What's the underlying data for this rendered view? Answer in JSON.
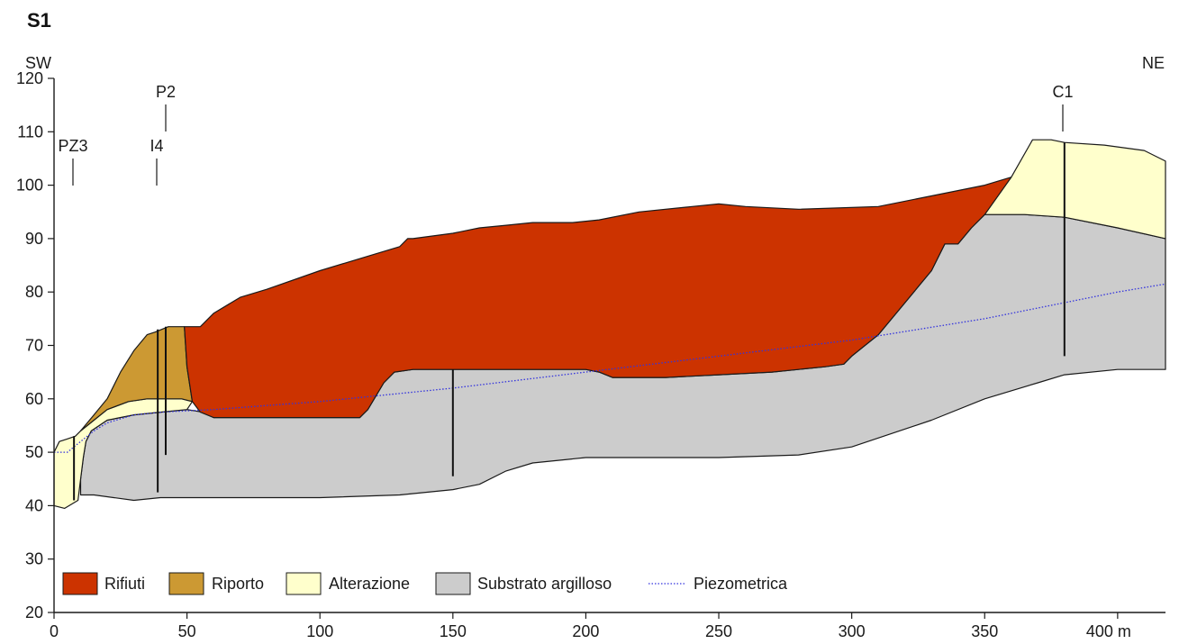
{
  "section": {
    "title": "S1",
    "orientation_left": "SW",
    "orientation_right": "NE"
  },
  "axes": {
    "x_ticks": [
      "0",
      "50",
      "100",
      "150",
      "200",
      "250",
      "300",
      "350",
      "400 m"
    ],
    "x_tick_values": [
      0,
      50,
      100,
      150,
      200,
      250,
      300,
      350,
      400
    ],
    "y_ticks": [
      "20",
      "30",
      "40",
      "50",
      "60",
      "70",
      "80",
      "90",
      "100",
      "110",
      "120"
    ],
    "y_tick_values": [
      20,
      30,
      40,
      50,
      60,
      70,
      80,
      90,
      100,
      110,
      120
    ],
    "xlim": [
      0,
      418
    ],
    "ylim": [
      20,
      120
    ]
  },
  "colors": {
    "rifiuti": "#cc3300",
    "riporto": "#cc9933",
    "alterazione": "#ffffcc",
    "substrato": "#cccccc",
    "piezometrica": "#3333dd"
  },
  "boreholes": [
    {
      "id": "PZ3",
      "label": "PZ3",
      "x": 7.5,
      "top": 53,
      "bottom": 41
    },
    {
      "id": "I4",
      "label": "I4",
      "x": 39,
      "top": 73,
      "bottom": 42.5
    },
    {
      "id": "P2",
      "label": "P2",
      "x": 42,
      "top": 73.5,
      "bottom": 49.5
    },
    {
      "id": "B150",
      "label": "",
      "x": 150,
      "top": 65.5,
      "bottom": 45.5
    },
    {
      "id": "C1",
      "label": "C1",
      "x": 380,
      "top": 108,
      "bottom": 68
    }
  ],
  "layers": {
    "substrato": [
      [
        10,
        42
      ],
      [
        15,
        42
      ],
      [
        30,
        41
      ],
      [
        40,
        41.5
      ],
      [
        60,
        41.5
      ],
      [
        100,
        41.5
      ],
      [
        130,
        42
      ],
      [
        150,
        43
      ],
      [
        160,
        44
      ],
      [
        170,
        46.5
      ],
      [
        180,
        48
      ],
      [
        200,
        49
      ],
      [
        250,
        49
      ],
      [
        280,
        49.5
      ],
      [
        300,
        51
      ],
      [
        330,
        56
      ],
      [
        350,
        60
      ],
      [
        370,
        63
      ],
      [
        380,
        64.5
      ],
      [
        400,
        65.5
      ],
      [
        418,
        65.5
      ],
      [
        418,
        90
      ],
      [
        400,
        92
      ],
      [
        380,
        94
      ],
      [
        365,
        94.5
      ],
      [
        350,
        94.5
      ],
      [
        345,
        92
      ],
      [
        340,
        89
      ],
      [
        335,
        89
      ],
      [
        330,
        84
      ],
      [
        320,
        78
      ],
      [
        310,
        72
      ],
      [
        300,
        68
      ],
      [
        297,
        66.5
      ],
      [
        290,
        66
      ],
      [
        270,
        65
      ],
      [
        250,
        64.5
      ],
      [
        230,
        64
      ],
      [
        210,
        64
      ],
      [
        205,
        65
      ],
      [
        200,
        65.5
      ],
      [
        150,
        65.5
      ],
      [
        135,
        65.5
      ],
      [
        128,
        65
      ],
      [
        124,
        63
      ],
      [
        118,
        58
      ],
      [
        115,
        56.5
      ],
      [
        100,
        56.5
      ],
      [
        80,
        56.5
      ],
      [
        60,
        56.5
      ],
      [
        56,
        57.5
      ],
      [
        50,
        58
      ],
      [
        40,
        57.5
      ],
      [
        30,
        57
      ],
      [
        20,
        56
      ],
      [
        14,
        54
      ],
      [
        12,
        52
      ],
      [
        11,
        49
      ],
      [
        10,
        45
      ]
    ],
    "alterazione_left": [
      [
        0,
        40
      ],
      [
        4,
        39.5
      ],
      [
        9,
        41
      ],
      [
        10,
        45
      ],
      [
        11,
        49
      ],
      [
        12,
        52
      ],
      [
        14,
        54
      ],
      [
        20,
        56
      ],
      [
        30,
        57
      ],
      [
        40,
        57.5
      ],
      [
        50,
        58
      ],
      [
        52,
        59.5
      ],
      [
        48,
        60
      ],
      [
        35,
        60
      ],
      [
        28,
        59.5
      ],
      [
        20,
        58
      ],
      [
        15,
        56
      ],
      [
        10,
        54
      ],
      [
        8,
        53
      ],
      [
        5,
        52.5
      ],
      [
        2,
        52
      ],
      [
        0,
        50
      ]
    ],
    "alterazione_right": [
      [
        350,
        94.5
      ],
      [
        365,
        94.5
      ],
      [
        380,
        94
      ],
      [
        400,
        92
      ],
      [
        418,
        90
      ],
      [
        418,
        104.5
      ],
      [
        410,
        106.5
      ],
      [
        395,
        107.5
      ],
      [
        380,
        108
      ],
      [
        375,
        108.5
      ],
      [
        368,
        108.5
      ],
      [
        360,
        101.5
      ],
      [
        350,
        94.5
      ]
    ],
    "riporto": [
      [
        10,
        54
      ],
      [
        15,
        56
      ],
      [
        20,
        58
      ],
      [
        28,
        59.5
      ],
      [
        35,
        60
      ],
      [
        48,
        60
      ],
      [
        52,
        59.5
      ],
      [
        50,
        66
      ],
      [
        49,
        73.5
      ],
      [
        43,
        73.5
      ],
      [
        38,
        72.5
      ],
      [
        35,
        72
      ],
      [
        30,
        69
      ],
      [
        25,
        65
      ],
      [
        20,
        60
      ],
      [
        15,
        57
      ],
      [
        10,
        54
      ]
    ],
    "rifiuti": [
      [
        52,
        59.5
      ],
      [
        55,
        57.5
      ],
      [
        60,
        56.5
      ],
      [
        80,
        56.5
      ],
      [
        100,
        56.5
      ],
      [
        115,
        56.5
      ],
      [
        118,
        58
      ],
      [
        124,
        63
      ],
      [
        128,
        65
      ],
      [
        135,
        65.5
      ],
      [
        150,
        65.5
      ],
      [
        200,
        65.5
      ],
      [
        205,
        65
      ],
      [
        210,
        64
      ],
      [
        230,
        64
      ],
      [
        250,
        64.5
      ],
      [
        270,
        65
      ],
      [
        290,
        66
      ],
      [
        297,
        66.5
      ],
      [
        300,
        68
      ],
      [
        310,
        72
      ],
      [
        320,
        78
      ],
      [
        330,
        84
      ],
      [
        335,
        89
      ],
      [
        340,
        89
      ],
      [
        345,
        92
      ],
      [
        350,
        94.5
      ],
      [
        360,
        101.5
      ],
      [
        350,
        100
      ],
      [
        330,
        98
      ],
      [
        310,
        96
      ],
      [
        280,
        95.5
      ],
      [
        260,
        96
      ],
      [
        250,
        96.5
      ],
      [
        240,
        96
      ],
      [
        220,
        95
      ],
      [
        205,
        93.5
      ],
      [
        195,
        93
      ],
      [
        180,
        93
      ],
      [
        170,
        92.5
      ],
      [
        160,
        92
      ],
      [
        150,
        91
      ],
      [
        135,
        90
      ],
      [
        133,
        90
      ],
      [
        130,
        88.5
      ],
      [
        120,
        87
      ],
      [
        100,
        84
      ],
      [
        80,
        80.5
      ],
      [
        70,
        79
      ],
      [
        60,
        76
      ],
      [
        55,
        73.5
      ],
      [
        49,
        73.5
      ],
      [
        50,
        66
      ]
    ]
  },
  "piezometrica": [
    [
      0,
      50
    ],
    [
      5,
      50
    ],
    [
      10,
      52
    ],
    [
      15,
      54
    ],
    [
      20,
      55.5
    ],
    [
      30,
      57
    ],
    [
      40,
      57.5
    ],
    [
      60,
      58
    ],
    [
      100,
      59.5
    ],
    [
      150,
      62
    ],
    [
      200,
      65
    ],
    [
      250,
      68
    ],
    [
      300,
      71
    ],
    [
      350,
      75
    ],
    [
      400,
      80
    ],
    [
      418,
      81.5
    ]
  ],
  "legend": [
    {
      "key": "rifiuti",
      "label": "Rifiuti",
      "kind": "swatch"
    },
    {
      "key": "riporto",
      "label": "Riporto",
      "kind": "swatch"
    },
    {
      "key": "alterazione",
      "label": "Alterazione",
      "kind": "swatch"
    },
    {
      "key": "substrato",
      "label": "Substrato argilloso",
      "kind": "swatch"
    },
    {
      "key": "piezometrica",
      "label": "Piezometrica",
      "kind": "dotted-line"
    }
  ]
}
